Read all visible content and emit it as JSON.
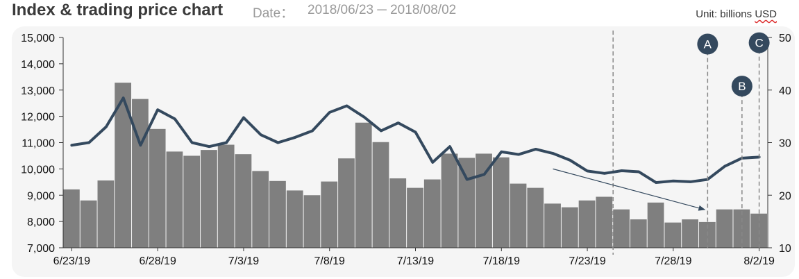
{
  "header": {
    "title": "Index & trading price chart",
    "date_label": "Date：",
    "date_range": "2018/06/23 ─ 2018/08/02",
    "unit_prefix": "Unit: billions ",
    "unit_suffix": "USD"
  },
  "chart_data": {
    "type": "bar+line",
    "x_tick_labels": [
      "6/23/19",
      "6/28/19",
      "7/3/19",
      "7/8/19",
      "7/13/19",
      "7/18/19",
      "7/23/19",
      "7/28/19",
      "8/2/19"
    ],
    "left_axis": {
      "ylim": [
        7000,
        15000
      ],
      "ticks": [
        "7,000",
        "8,000",
        "9,000",
        "10,000",
        "11,000",
        "12,000",
        "13,000",
        "14,000",
        "15,000"
      ]
    },
    "right_axis": {
      "ylim": [
        10,
        50
      ],
      "ticks": [
        "10",
        "20",
        "30",
        "40",
        "50"
      ]
    },
    "bars": {
      "axis": "right",
      "values": [
        21.1,
        19.0,
        22.8,
        41.4,
        38.3,
        32.6,
        28.3,
        27.5,
        28.6,
        29.6,
        27.8,
        24.6,
        22.7,
        20.9,
        20.0,
        22.6,
        27.0,
        33.8,
        30.1,
        23.2,
        21.4,
        23.0,
        27.9,
        27.1,
        27.9,
        27.2,
        22.2,
        21.4,
        18.4,
        17.7,
        19.0,
        19.7,
        17.3,
        15.4,
        18.6,
        14.8,
        15.4,
        14.9,
        17.3,
        17.3,
        16.5
      ],
      "color": "#7f7f7f"
    },
    "line": {
      "axis": "left",
      "values": [
        10900,
        11000,
        11600,
        12700,
        10900,
        12250,
        11900,
        11000,
        10850,
        11000,
        11950,
        11300,
        11000,
        11200,
        11450,
        12150,
        12400,
        11980,
        11450,
        11750,
        11400,
        10250,
        10850,
        9600,
        9790,
        10650,
        10550,
        10750,
        10590,
        10330,
        9920,
        9830,
        9930,
        9890,
        9480,
        9540,
        9510,
        9600,
        10100,
        10410,
        10450
      ],
      "color": "#34495e"
    },
    "markers": [
      {
        "label": "A",
        "index": 37,
        "value": 14750
      },
      {
        "label": "B",
        "index": 39,
        "value": 13150
      },
      {
        "label": "C",
        "index": 40,
        "value": 14800
      }
    ],
    "marker_color": "#34495e",
    "vertical_dashed_line_index": 32,
    "trend_arrow": {
      "from": {
        "index": 28,
        "value": 10000
      },
      "to": {
        "index": 37,
        "value": 8450
      }
    }
  }
}
